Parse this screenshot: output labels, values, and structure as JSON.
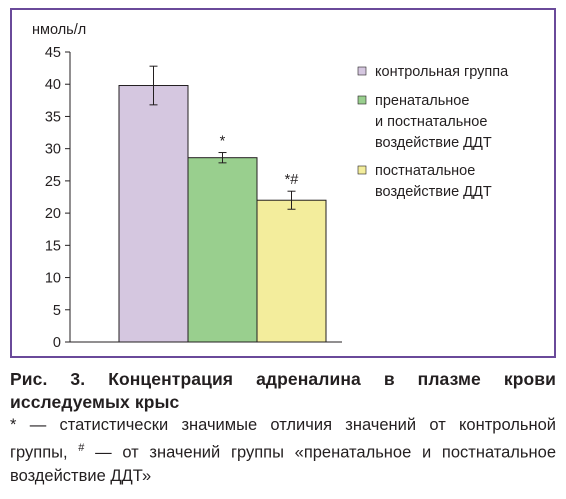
{
  "chart_data": {
    "type": "bar",
    "ylabel": "нмоль/л",
    "ylim": [
      0,
      45
    ],
    "yticks": [
      0,
      5,
      10,
      15,
      20,
      25,
      30,
      35,
      40,
      45
    ],
    "grid": false,
    "legend_position": "right",
    "series": [
      {
        "name": "контрольная группа",
        "legend_lines": [
          "контрольная группа"
        ],
        "value": 39.8,
        "error": 3.0,
        "color": "#d5c7e0",
        "annotation": ""
      },
      {
        "name": "пренатальное и постнатальное воздействие ДДТ",
        "legend_lines": [
          "пренатальное",
          "и постнатальное",
          "воздействие ДДТ"
        ],
        "value": 28.6,
        "error": 0.8,
        "color": "#99cf8e",
        "annotation": "*"
      },
      {
        "name": "постнатальное воздействие ДДТ",
        "legend_lines": [
          "постнатальное",
          "воздействие ДДТ"
        ],
        "value": 22.0,
        "error": 1.4,
        "color": "#f3ed9c",
        "annotation": "*#"
      }
    ]
  },
  "caption": {
    "title": "Рис. 3. Концентрация адреналина в плазме крови исследуемых крыс",
    "note_part1": "* — статистически значимые отличия значений от контрольной группы,",
    "note_sup": "#",
    "note_part2": "— от значений группы «пренатальное и постнатальное воздействие ДДТ»"
  }
}
